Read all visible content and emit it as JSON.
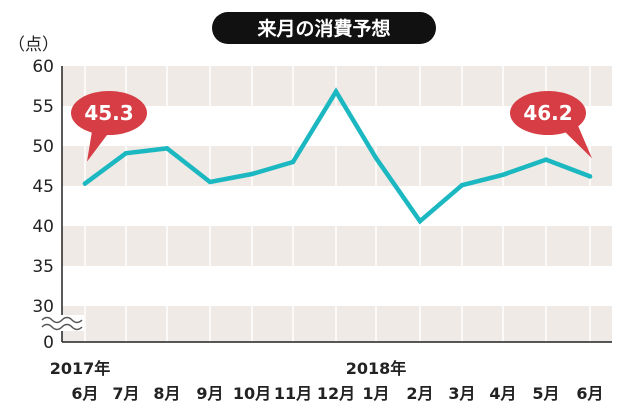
{
  "chart_data": {
    "type": "line",
    "title": "来月の消費予想",
    "ylabel": "（点）",
    "xlabel": "",
    "year_labels": [
      {
        "text": "2017年",
        "at_index": 0
      },
      {
        "text": "2018年",
        "at_index": 7
      }
    ],
    "categories": [
      "6月",
      "7月",
      "8月",
      "9月",
      "10月",
      "11月",
      "12月",
      "1月",
      "2月",
      "3月",
      "4月",
      "5月",
      "6月"
    ],
    "values": [
      45.3,
      49.1,
      49.7,
      45.5,
      46.5,
      48.0,
      56.8,
      48.5,
      40.6,
      45.1,
      46.4,
      48.3,
      46.2
    ],
    "y_ticks": [
      "60",
      "55",
      "50",
      "45",
      "40",
      "35",
      "30",
      "0"
    ],
    "ylim": [
      30,
      60
    ],
    "axis_break": true,
    "grid": "alternating bands",
    "callouts": [
      {
        "text": "45.3",
        "at_index": 0
      },
      {
        "text": "46.2",
        "at_index": 12
      }
    ],
    "colors": {
      "line": "#1bb8c1",
      "band": "#efeae5",
      "callout": "#d63d44",
      "title_bg": "#111111",
      "axis": "#222222",
      "vline": "#ffffff",
      "break_mark": "#555555"
    }
  }
}
